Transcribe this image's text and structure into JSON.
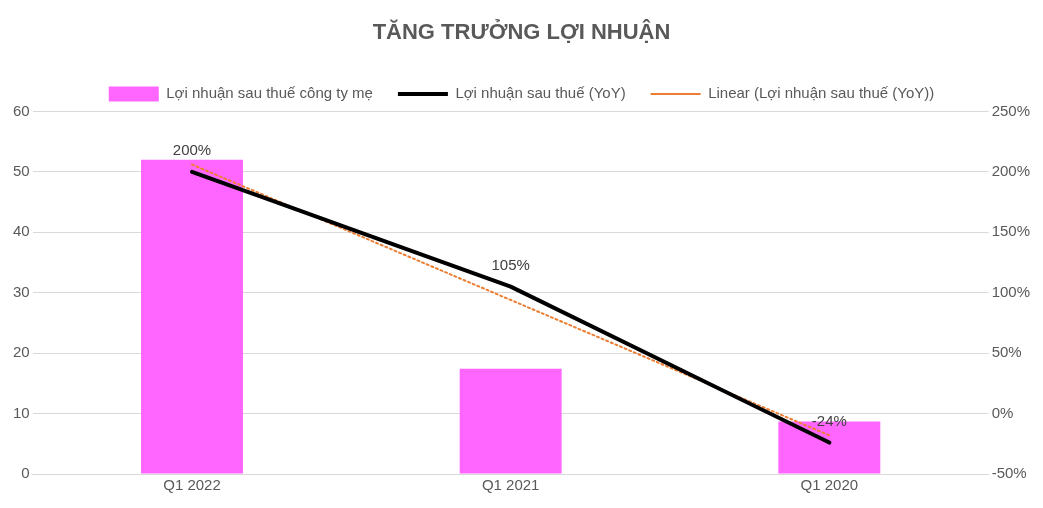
{
  "chart_data": {
    "type": "bar",
    "title": "TĂNG TRƯỞNG LỢI NHUẬN",
    "categories": [
      "Q1 2022",
      "Q1 2021",
      "Q1 2020"
    ],
    "series": [
      {
        "name": "Lợi nhuận sau thuế công ty mẹ",
        "color": "#ff66ff",
        "values": [
          52,
          17.4,
          8.7
        ]
      },
      {
        "name": "Lợi nhuận sau thuế (YoY)",
        "type": "line",
        "axis": "y2",
        "color": "#000000",
        "values": [
          200,
          105,
          -24
        ],
        "value_labels": [
          "200%",
          "105%",
          "-24%"
        ],
        "line_style": "solid"
      },
      {
        "name": "Linear (Lợi nhuận sau thuế (YoY))",
        "type": "line",
        "axis": "y2",
        "color": "#ed7d31",
        "values": [
          206,
          94,
          -18
        ],
        "line_style": "dotted"
      }
    ],
    "ylim": [
      0,
      60
    ],
    "yticks": [
      0,
      10,
      20,
      30,
      40,
      50,
      60
    ],
    "y2lim": [
      -50,
      250
    ],
    "y2ticks": [
      {
        "value": -50,
        "label": "-50%"
      },
      {
        "value": 0,
        "label": "0%"
      },
      {
        "value": 50,
        "label": "50%"
      },
      {
        "value": 100,
        "label": "100%"
      },
      {
        "value": 150,
        "label": "150%"
      },
      {
        "value": 200,
        "label": "200%"
      },
      {
        "value": 250,
        "label": "250%"
      }
    ],
    "grid": "y",
    "legend": "top",
    "marker": "none"
  }
}
